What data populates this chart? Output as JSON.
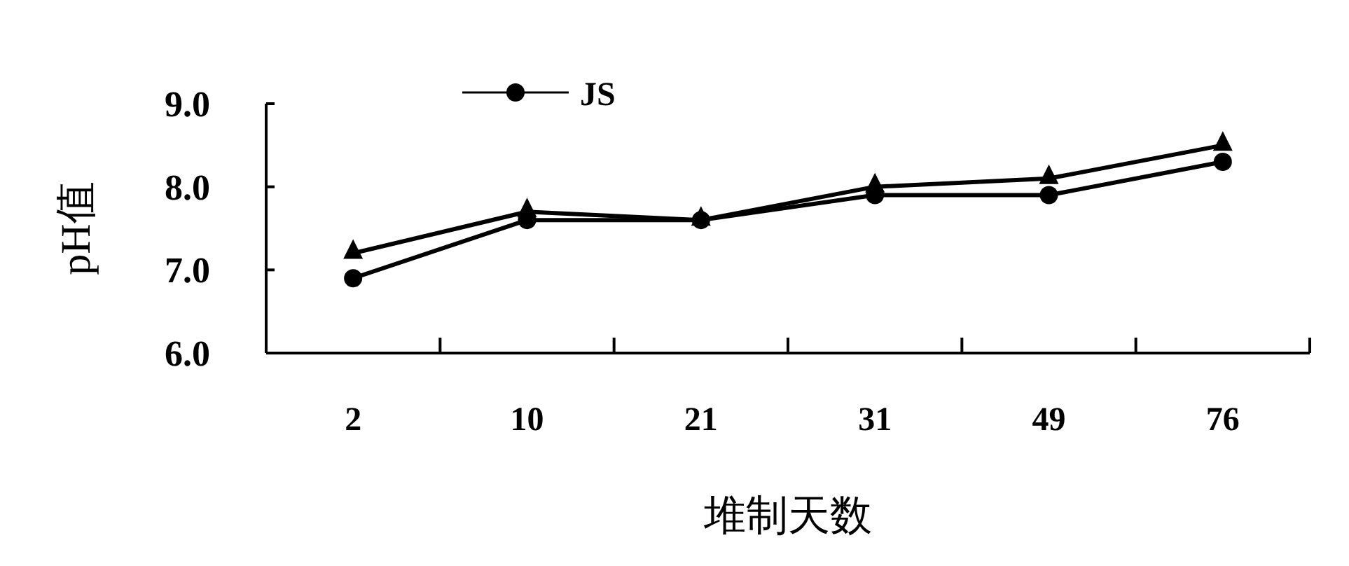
{
  "chart_data": {
    "type": "line",
    "xlabel": "堆制天数",
    "ylabel": "pH值",
    "categories": [
      "2",
      "10",
      "21",
      "31",
      "49",
      "76"
    ],
    "ylim": [
      6,
      9
    ],
    "yticks": [
      {
        "value": 6,
        "label": "6.0"
      },
      {
        "value": 7,
        "label": "7.0"
      },
      {
        "value": 8,
        "label": "8.0"
      },
      {
        "value": 9,
        "label": "9.0"
      }
    ],
    "grid": false,
    "legend": "top",
    "series": [
      {
        "color": "#000000",
        "marker": "triangle",
        "values": [
          7.2,
          7.7,
          7.6,
          8.0,
          8.1,
          8.5
        ]
      },
      {
        "name": "JS",
        "color": "#000000",
        "marker": "circle",
        "values": [
          6.9,
          7.6,
          7.6,
          7.9,
          7.9,
          8.3
        ]
      }
    ]
  }
}
